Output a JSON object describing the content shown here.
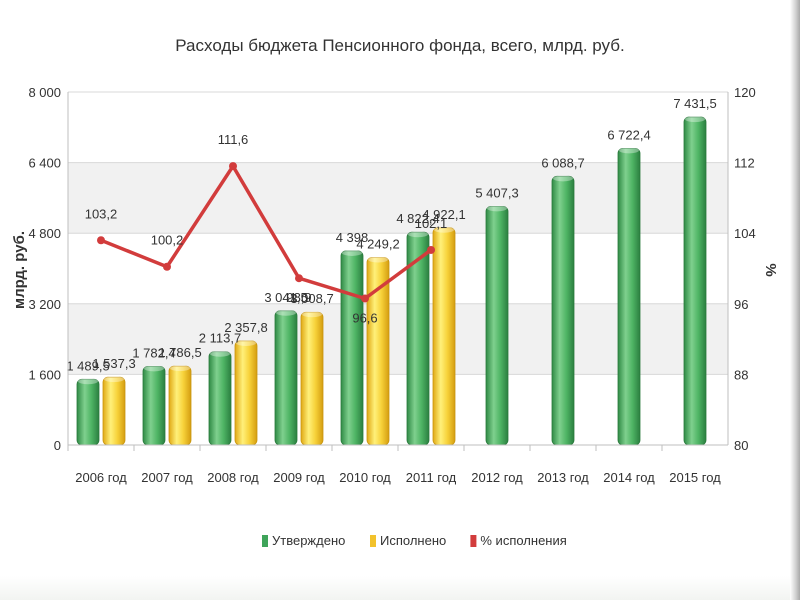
{
  "chart_data": {
    "type": "bar",
    "title": "Расходы бюджета Пенсионного фонда, всего, млрд. руб.",
    "ylabel": "млрд. руб.",
    "y2label": "%",
    "ylim": [
      0,
      8000
    ],
    "y2lim": [
      80,
      120
    ],
    "yticks": [
      "0",
      "1 600",
      "3 200",
      "4 800",
      "6 400",
      "8 000"
    ],
    "y2ticks": [
      "80",
      "88",
      "96",
      "104",
      "112",
      "120"
    ],
    "grid": true,
    "legend_position": "bottom",
    "categories": [
      "2006 год",
      "2007 год",
      "2008 год",
      "2009 год",
      "2010 год",
      "2011 год",
      "2012 год",
      "2013 год",
      "2014 год",
      "2015 год"
    ],
    "series": [
      {
        "name": "Утверждено",
        "kind": "bar",
        "color": "#3fa45a",
        "values": [
          1489.5,
          1782.4,
          2113.7,
          3041.5,
          4398.0,
          4822.4,
          5407.3,
          6088.7,
          6722.4,
          7431.5
        ],
        "labels": [
          "1 489,5",
          "1 782,4",
          "2 113,7",
          "3 041,5",
          "4 398",
          "4 822,4",
          "5 407,3",
          "6 088,7",
          "6 722,4",
          "7 431,5"
        ]
      },
      {
        "name": "Исполнено",
        "kind": "bar",
        "color": "#f2c22c",
        "values": [
          1537.3,
          1786.5,
          2357.8,
          3008.7,
          4249.2,
          4922.1,
          null,
          null,
          null,
          null
        ],
        "labels": [
          "1 537,3",
          "1 786,5",
          "2 357,8",
          "3 008,7",
          "4 249,2",
          "4 922,1",
          null,
          null,
          null,
          null
        ]
      },
      {
        "name": "% исполнения",
        "kind": "line",
        "axis": "right",
        "color": "#d23c3c",
        "values": [
          103.2,
          100.2,
          111.6,
          98.9,
          96.6,
          102.1,
          null,
          null,
          null,
          null
        ],
        "labels": [
          "103,2",
          "100,2",
          "111,6",
          "98,9",
          "96,6",
          "102,1",
          null,
          null,
          null,
          null
        ]
      }
    ]
  }
}
